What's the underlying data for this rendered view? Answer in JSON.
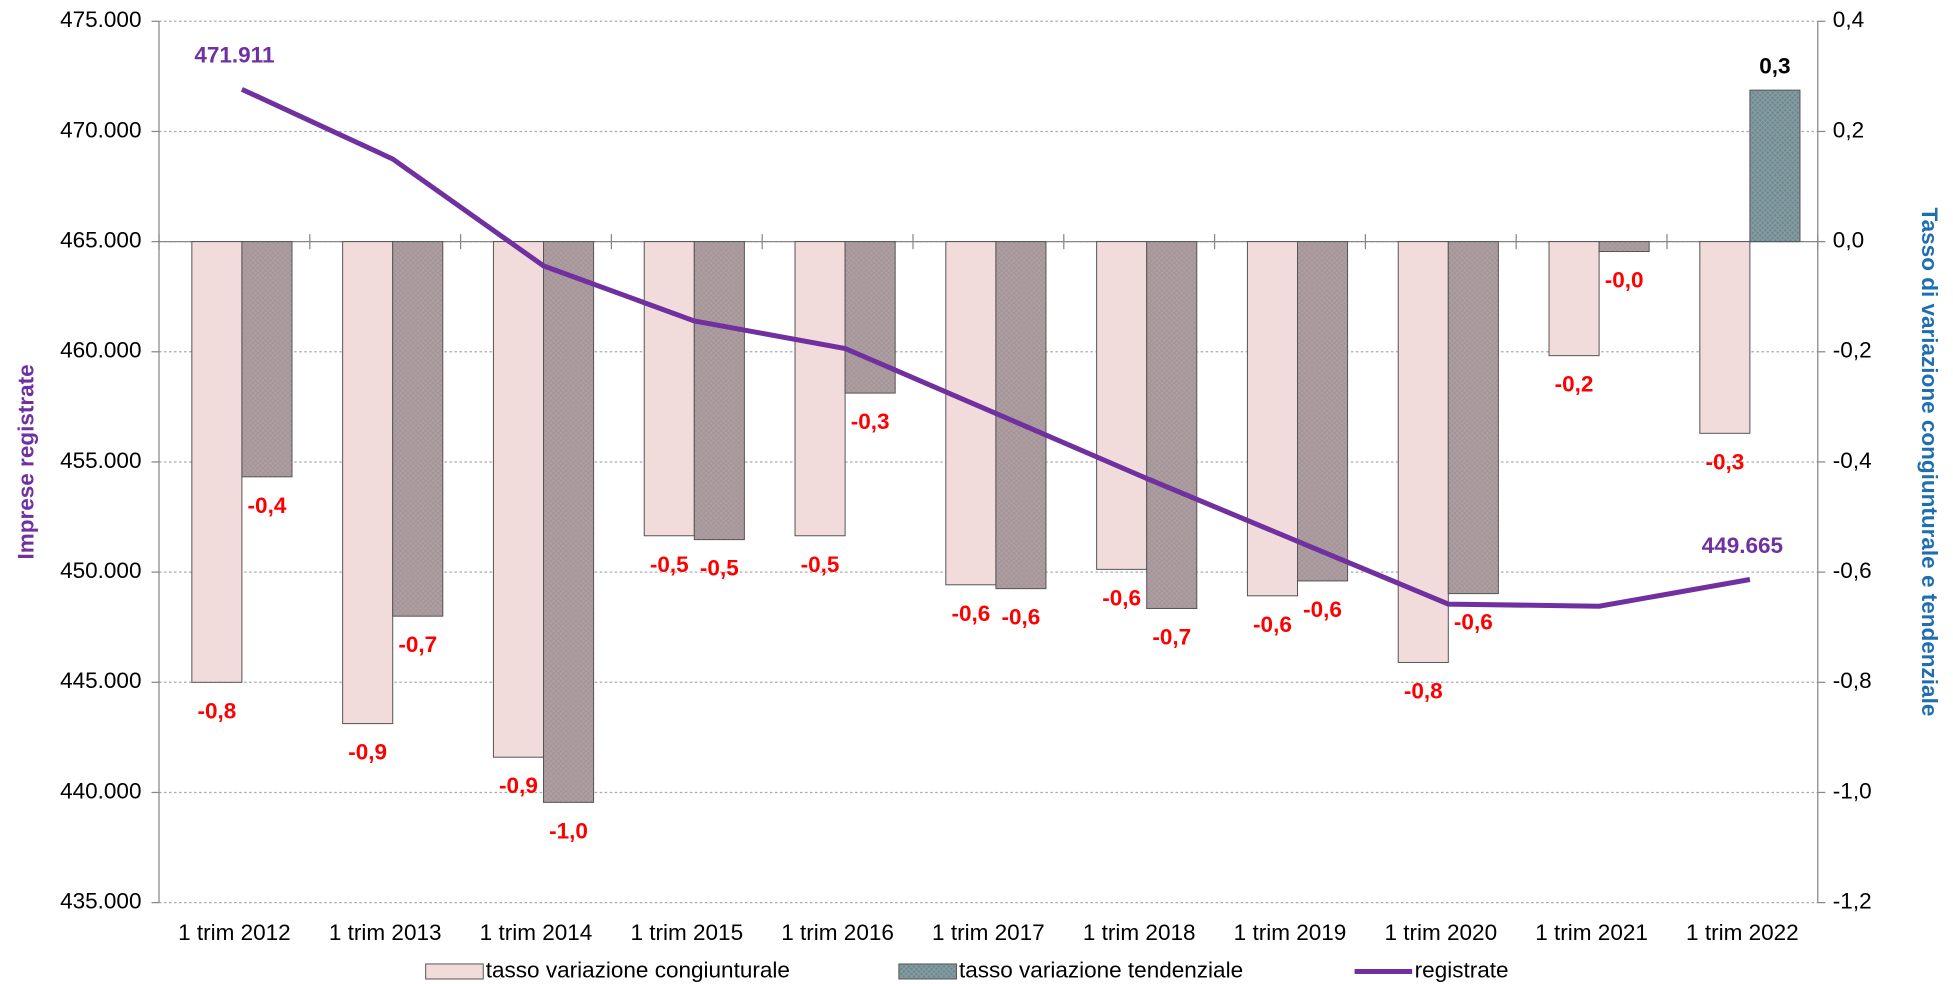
{
  "chart_data": {
    "type": "bar",
    "y_label": "Imprese registrate",
    "y2_label": "Tasso di variazione congiunturale e tendenziale",
    "categories": [
      "1 trim 2012",
      "1 trim 2013",
      "1 trim 2014",
      "1 trim 2015",
      "1 trim 2016",
      "1 trim 2017",
      "1 trim 2018",
      "1 trim 2019",
      "1 trim 2020",
      "1 trim 2021",
      "1 trim 2022"
    ],
    "series": [
      {
        "name": "tasso variazione congiunturale",
        "color": "#f2dcdb",
        "axis": "y2",
        "values": [
          -0.8,
          -0.875,
          -0.936,
          -0.534,
          -0.534,
          -0.623,
          -0.595,
          -0.643,
          -0.764,
          -0.207,
          -0.348
        ],
        "value_labels": [
          "-0,8",
          "-0,9",
          "-0,9",
          "-0,5",
          "-0,5",
          "-0,6",
          "-0,6",
          "-0,6",
          "-0,8",
          "-0,2",
          "-0,3"
        ]
      },
      {
        "name": "tasso variazione tendenziale",
        "color": "#5f8f9a",
        "negative_color": "#b89aa0",
        "axis": "y2",
        "values": [
          -0.427,
          -0.68,
          -1.018,
          -0.541,
          -0.275,
          -0.63,
          -0.666,
          -0.616,
          -0.639,
          -0.018,
          0.275
        ],
        "value_labels": [
          "-0,4",
          "-0,7",
          "-1,0",
          "-0,5",
          "-0,3",
          "-0,6",
          "-0,7",
          "-0,6",
          "-0,6",
          "-0,0",
          "0,3"
        ]
      },
      {
        "name": "registrate",
        "type": "line",
        "color": "#7030a0",
        "values": [
          471911,
          468750,
          463900,
          461400,
          460150,
          457200,
          454250,
          451400,
          448550,
          448450,
          449665
        ],
        "value_labels": [
          "471.911",
          null,
          null,
          null,
          null,
          null,
          null,
          null,
          null,
          null,
          "449.665"
        ]
      }
    ],
    "ylim": [
      435000,
      475000
    ],
    "yticks": [
      {
        "value": 435000,
        "label": "435.000"
      },
      {
        "value": 440000,
        "label": "440.000"
      },
      {
        "value": 445000,
        "label": "445.000"
      },
      {
        "value": 450000,
        "label": "450.000"
      },
      {
        "value": 455000,
        "label": "455.000"
      },
      {
        "value": 460000,
        "label": "460.000"
      },
      {
        "value": 465000,
        "label": "465.000"
      },
      {
        "value": 470000,
        "label": "470.000"
      },
      {
        "value": 475000,
        "label": "475.000"
      }
    ],
    "y2lim": [
      -1.2,
      0.4
    ],
    "y2ticks": [
      {
        "value": -1.2,
        "label": "-1,2"
      },
      {
        "value": -1.0,
        "label": "-1,0"
      },
      {
        "value": -0.8,
        "label": "-0,8"
      },
      {
        "value": -0.6,
        "label": "-0,6"
      },
      {
        "value": -0.4,
        "label": "-0,4"
      },
      {
        "value": -0.2,
        "label": "-0,2"
      },
      {
        "value": 0,
        "label": "0,0"
      },
      {
        "value": 0.2,
        "label": "0,2"
      },
      {
        "value": 0.4,
        "label": "0,4"
      }
    ],
    "grid": true,
    "legend": "bottom"
  }
}
